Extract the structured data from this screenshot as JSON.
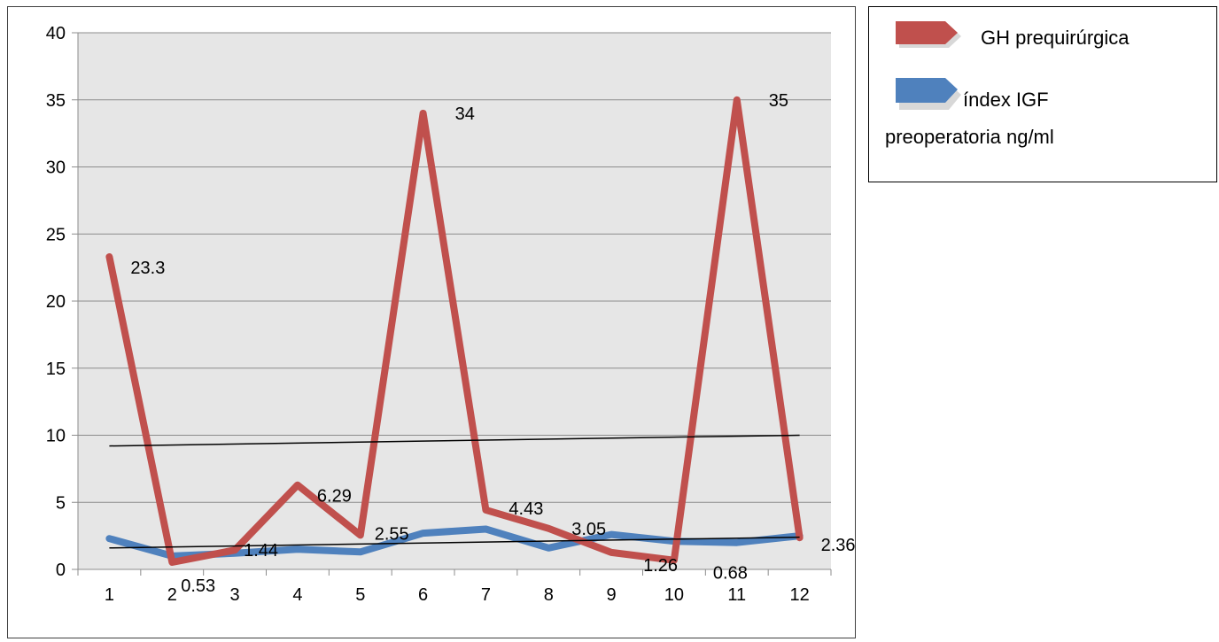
{
  "chart_data": {
    "type": "line",
    "categories": [
      "1",
      "2",
      "3",
      "4",
      "5",
      "6",
      "7",
      "8",
      "9",
      "10",
      "11",
      "12"
    ],
    "ylim": [
      0,
      40
    ],
    "yticks": [
      0,
      5,
      10,
      15,
      20,
      25,
      30,
      35,
      40
    ],
    "grid": true,
    "legend_position": "top-right, outside plot",
    "series": [
      {
        "name": "GH prequirúrgica",
        "color": "#C0504D",
        "values": [
          23.3,
          0.53,
          1.44,
          6.29,
          2.55,
          34,
          4.43,
          3.05,
          1.26,
          0.68,
          35,
          2.36
        ],
        "labels": [
          "23.3",
          "0.53",
          "1.44",
          "6.29",
          "2.55",
          "34",
          "4.43",
          "3.05",
          "1.26",
          "0.68",
          "35",
          "2.36"
        ]
      },
      {
        "name": "índex IGF preoperatoria ng/ml",
        "color": "#4F81BD",
        "values": [
          2.3,
          1.0,
          1.2,
          1.5,
          1.3,
          2.7,
          3.0,
          1.6,
          2.6,
          2.1,
          2.0,
          2.5
        ]
      }
    ],
    "trendlines": [
      {
        "color": "#000000",
        "from": [
          1,
          9.2
        ],
        "to": [
          12,
          10.0
        ]
      },
      {
        "color": "#000000",
        "from": [
          1,
          1.6
        ],
        "to": [
          12,
          2.4
        ]
      }
    ]
  },
  "legend": {
    "item1_label": "GH prequirúrgica",
    "item2_label_line1": "índex  IGF",
    "item2_label_line2": "preoperatoria ng/ml"
  }
}
